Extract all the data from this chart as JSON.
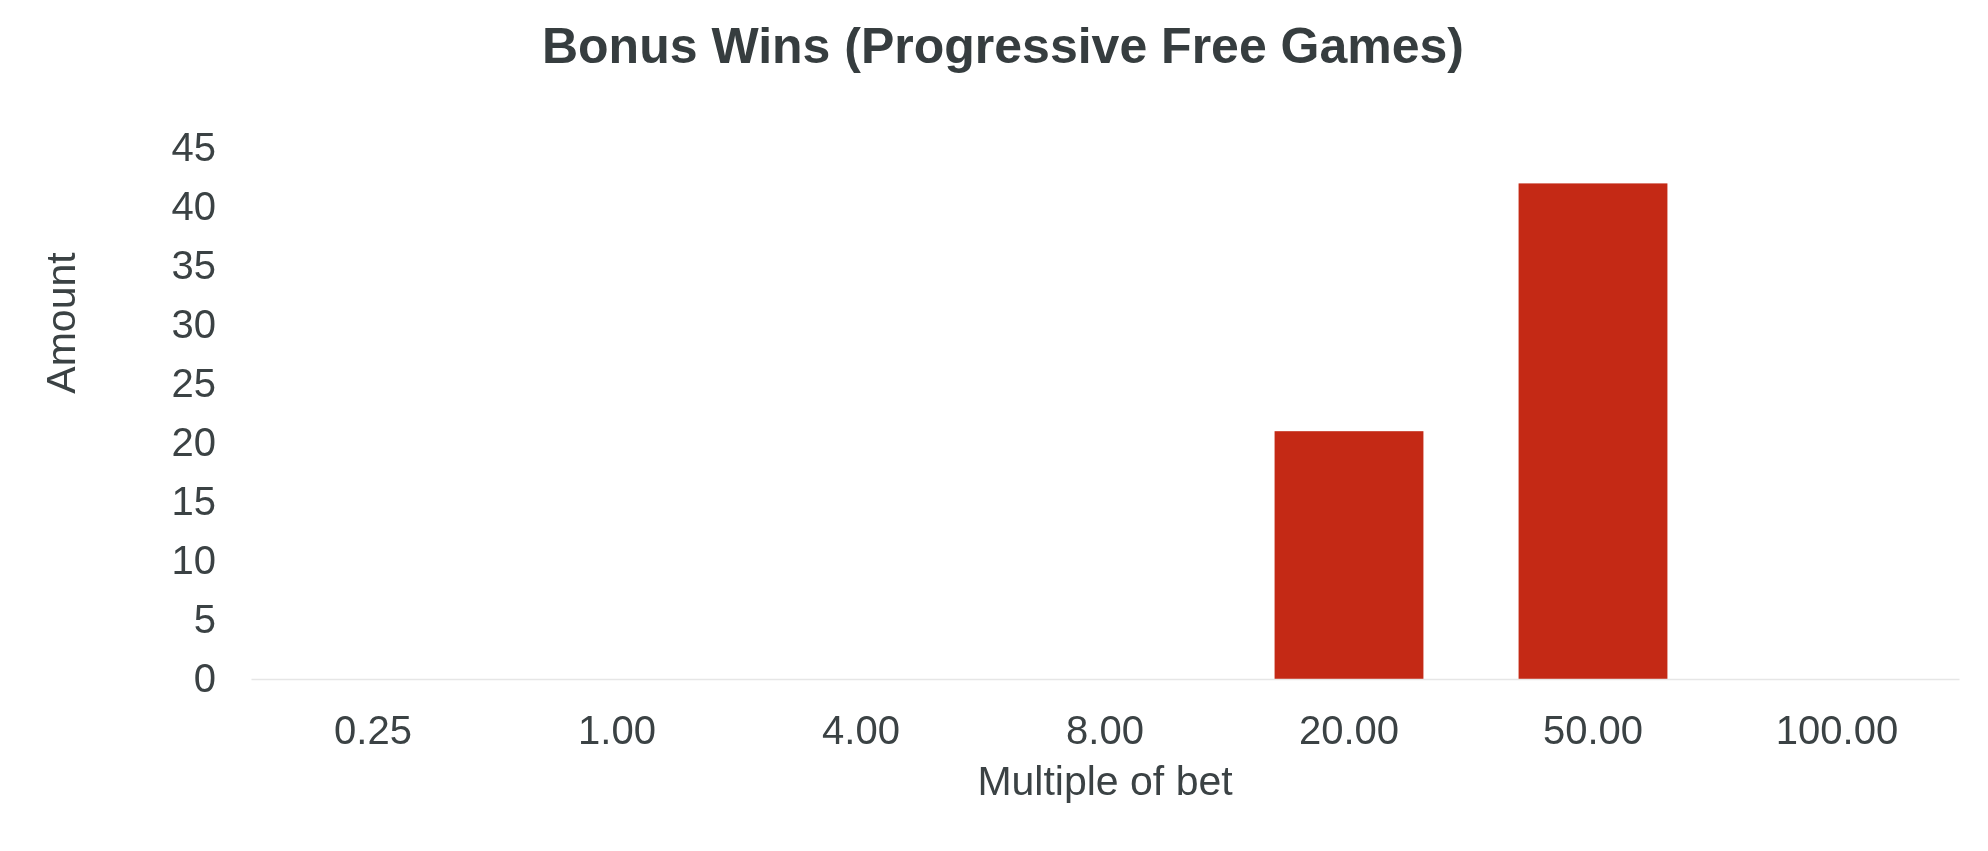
{
  "chart_data": {
    "type": "bar",
    "title": "Bonus Wins (Progressive Free Games)",
    "xlabel": "Multiple of bet",
    "ylabel": "Amount",
    "categories": [
      "0.25",
      "1.00",
      "4.00",
      "8.00",
      "20.00",
      "50.00",
      "100.00"
    ],
    "values": [
      0,
      0,
      0,
      0,
      21,
      42,
      0
    ],
    "color": "#c42915",
    "ylim": [
      0,
      45
    ],
    "yticks": [
      0,
      5,
      10,
      15,
      20,
      25,
      30,
      35,
      40,
      45
    ]
  }
}
